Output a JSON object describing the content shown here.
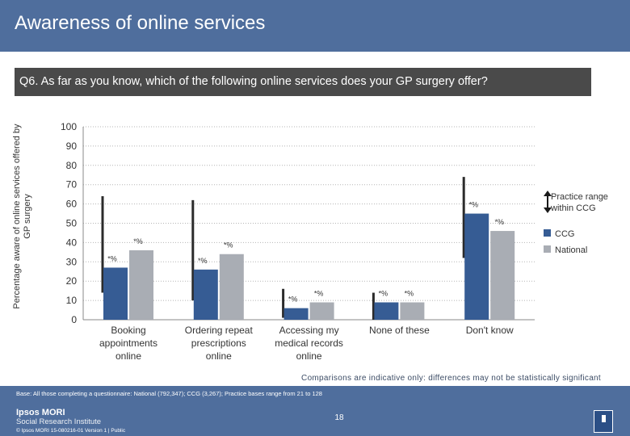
{
  "header": {
    "title": "Awareness of online services"
  },
  "question": "Q6. As far as you know, which of the following online services does your GP surgery offer?",
  "chart_data": {
    "type": "bar",
    "ylabel": "Percentage aware of online services offered by GP surgery",
    "ylim": [
      0,
      100
    ],
    "yticks": [
      "0",
      "10",
      "20",
      "30",
      "40",
      "50",
      "60",
      "70",
      "80",
      "90",
      "100"
    ],
    "categories": [
      "Booking appointments online",
      "Ordering repeat prescriptions online",
      "Accessing my medical records online",
      "None of these",
      "Don't know"
    ],
    "category_lines": [
      [
        "Booking",
        "appointments",
        "online"
      ],
      [
        "Ordering repeat",
        "prescriptions",
        "online"
      ],
      [
        "Accessing my",
        "medical records",
        "online"
      ],
      [
        "None of these"
      ],
      [
        "Don't know"
      ]
    ],
    "series": [
      {
        "name": "CCG",
        "color": "#365c94",
        "values": [
          27,
          26,
          6,
          9,
          55
        ],
        "labels": [
          "*%",
          "*%",
          "*%",
          "*%",
          "*%"
        ]
      },
      {
        "name": "National",
        "color": "#a9adb4",
        "values": [
          36,
          34,
          9,
          9,
          46
        ],
        "labels": [
          "*%",
          "*%",
          "*%",
          "*%",
          "*%"
        ]
      }
    ],
    "practice_range": [
      [
        14,
        64
      ],
      [
        10,
        62
      ],
      [
        1,
        16
      ],
      [
        0,
        14
      ],
      [
        32,
        74
      ]
    ],
    "legend": {
      "range_label_1": "Practice range",
      "range_label_2": "within CCG",
      "placement": "right"
    },
    "grid": true
  },
  "footnote": "Comparisons are indicative only: differences may not be statistically significant",
  "footer": {
    "base": "Base: All those completing a questionnaire: National (792,347); CCG (3,267); Practice bases range from 21 to 128",
    "brand_line1": "Ipsos MORI",
    "brand_line2": "Social Research Institute",
    "copyright": "© Ipsos MORI      15-080216-01 Version 1 | Public",
    "page": "18",
    "logo_text": "Ipsos"
  }
}
